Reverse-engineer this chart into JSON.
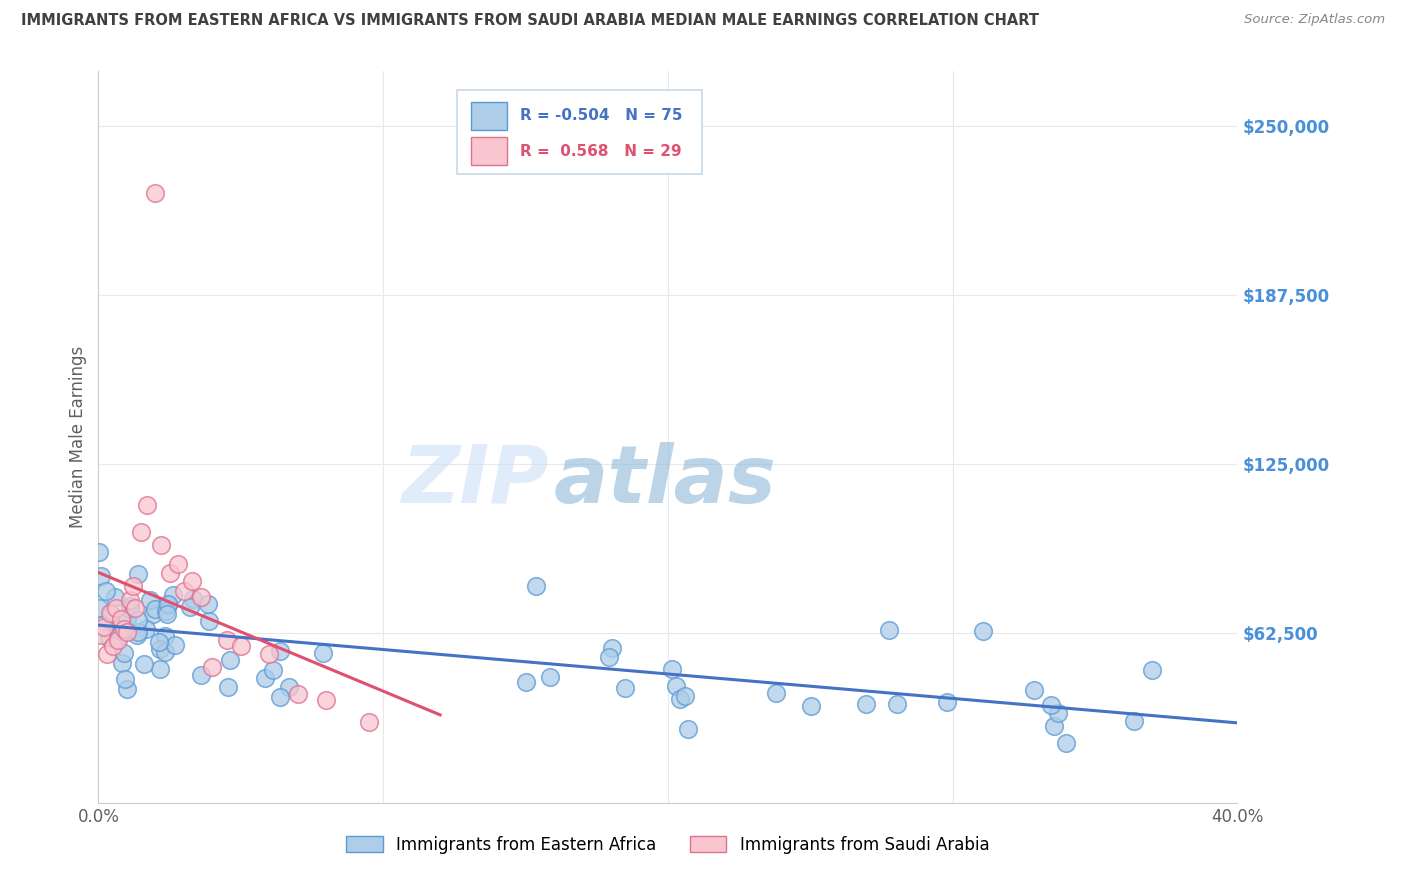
{
  "title": "IMMIGRANTS FROM EASTERN AFRICA VS IMMIGRANTS FROM SAUDI ARABIA MEDIAN MALE EARNINGS CORRELATION CHART",
  "source": "Source: ZipAtlas.com",
  "ylabel": "Median Male Earnings",
  "xlim": [
    0.0,
    0.4
  ],
  "ylim": [
    0,
    270000
  ],
  "yticks": [
    0,
    62500,
    125000,
    187500,
    250000
  ],
  "ytick_labels": [
    "",
    "$62,500",
    "$125,000",
    "$187,500",
    "$250,000"
  ],
  "xticks": [
    0.0,
    0.1,
    0.2,
    0.3,
    0.4
  ],
  "series1_name": "Immigrants from Eastern Africa",
  "series1_color": "#aecde8",
  "series1_edge_color": "#5b9bd5",
  "series1_line_color": "#4472c4",
  "series2_name": "Immigrants from Saudi Arabia",
  "series2_color": "#f9c6d0",
  "series2_edge_color": "#e07090",
  "series2_line_color": "#e05070",
  "legend_box_color": "#f0f4f8",
  "legend_border_color": "#b0c4d8",
  "watermark_zip_color": "#d0e4f4",
  "watermark_atlas_color": "#90b8d8",
  "background_color": "#ffffff",
  "grid_color": "#e8e8e8",
  "title_color": "#404040",
  "ylabel_color": "#606060",
  "ytick_color": "#4a90d9",
  "xtick_color": "#606060",
  "source_color": "#888888"
}
